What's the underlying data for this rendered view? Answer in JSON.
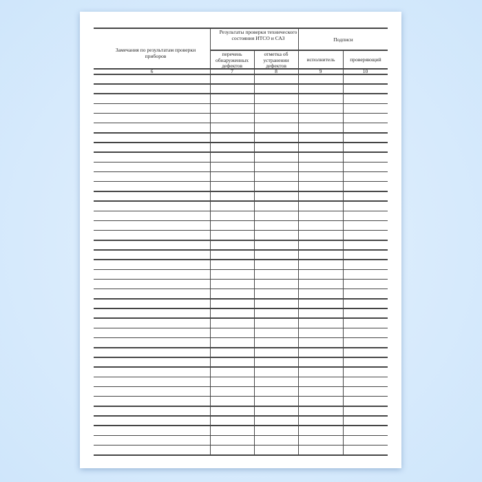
{
  "table": {
    "header": {
      "remarks": "Замечания по результатам проверки приборов",
      "results_group": "Результаты проверки технического состояния ИТСО и САЗ",
      "defects_list": "перечень обнаруженных дефектов",
      "defects_fixed": "отметка об устранении дефектов",
      "signatures_group": "Подписи",
      "executor": "исполнитель",
      "inspector": "проверяющий"
    },
    "column_numbers": [
      "6",
      "7",
      "8",
      "9",
      "10"
    ],
    "blank_rows": 39
  }
}
